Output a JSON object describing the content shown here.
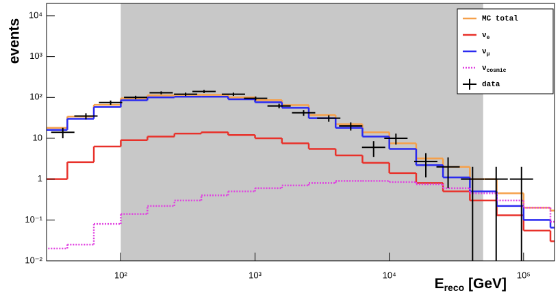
{
  "chart_data": {
    "type": "histogram",
    "ylabel": "events",
    "xlabel": {
      "main": "E",
      "sub": "reco",
      "unit": " [GeV]"
    },
    "xlog": true,
    "ylog": true,
    "xlim": [
      28,
      170000
    ],
    "ylim": [
      0.01,
      20000
    ],
    "xticks": [
      {
        "value": 100,
        "label": "10²"
      },
      {
        "value": 1000,
        "label": "10³"
      },
      {
        "value": 10000,
        "label": "10⁴"
      },
      {
        "value": 100000,
        "label": "10⁵"
      }
    ],
    "yticks": [
      {
        "value": 0.01,
        "label": "10⁻²"
      },
      {
        "value": 0.1,
        "label": "10⁻¹"
      },
      1,
      10,
      {
        "value": 100,
        "label": "10²"
      },
      {
        "value": 1000,
        "label": "10³"
      },
      {
        "value": 10000,
        "label": "10⁴"
      }
    ],
    "shade": {
      "range": [
        100,
        50000
      ],
      "color": "#c8c8c8"
    },
    "legend": "top-right",
    "bins": [
      25,
      40,
      63,
      100,
      158,
      251,
      398,
      631,
      1000,
      1585,
      2512,
      3981,
      6310,
      10000,
      15849,
      25119,
      39811,
      63096,
      100000,
      158489,
      251189
    ],
    "series": [
      {
        "name": "MC total",
        "color": "#f5a04a",
        "dash": false,
        "values": [
          18,
          34,
          66,
          95,
          112,
          116,
          116,
          100,
          86,
          65,
          37,
          22,
          14,
          7.5,
          3.2,
          2,
          1,
          0.45,
          0.2,
          0.17
        ]
      },
      {
        "name": "ν",
        "name_sub": "e",
        "color": "#e8312a",
        "dash": false,
        "values": [
          1,
          2.6,
          6.3,
          9,
          11,
          13,
          14,
          12,
          10,
          7.5,
          5.5,
          3.8,
          2.5,
          1.4,
          0.8,
          0.5,
          0.3,
          0.13,
          0.055,
          0.03
        ]
      },
      {
        "name": "ν",
        "name_sub": "μ",
        "color": "#2a2af0",
        "dash": false,
        "values": [
          16,
          30,
          58,
          85,
          100,
          104,
          104,
          90,
          76,
          56,
          31,
          18,
          11,
          5.5,
          2.2,
          1.1,
          0.5,
          0.22,
          0.1,
          0.065
        ]
      },
      {
        "name": "ν",
        "name_sub": "cosmic",
        "color": "#e040e0",
        "dash": true,
        "values": [
          0.02,
          0.025,
          0.08,
          0.14,
          0.22,
          0.3,
          0.4,
          0.5,
          0.6,
          0.7,
          0.8,
          0.9,
          0.9,
          0.85,
          0.75,
          0.6,
          0.45,
          0.3,
          0.2,
          0.09
        ]
      }
    ],
    "data": {
      "name": "data",
      "color": "#000000",
      "x": [
        37,
        55,
        84,
        129,
        200,
        304,
        417,
        690,
        1010,
        1510,
        2300,
        3540,
        5160,
        7640,
        11200,
        18700,
        27400,
        41700,
        62500,
        96500
      ],
      "values": [
        14,
        35,
        75,
        100,
        130,
        120,
        140,
        120,
        95,
        62,
        42,
        31,
        20,
        6,
        10,
        2.7,
        2,
        1,
        1,
        1
      ],
      "errors": [
        4,
        6,
        9,
        10,
        11,
        11,
        12,
        11,
        10,
        8,
        6.5,
        5.5,
        4.5,
        2.5,
        3,
        1.6,
        1.4,
        1,
        1,
        1
      ]
    }
  }
}
